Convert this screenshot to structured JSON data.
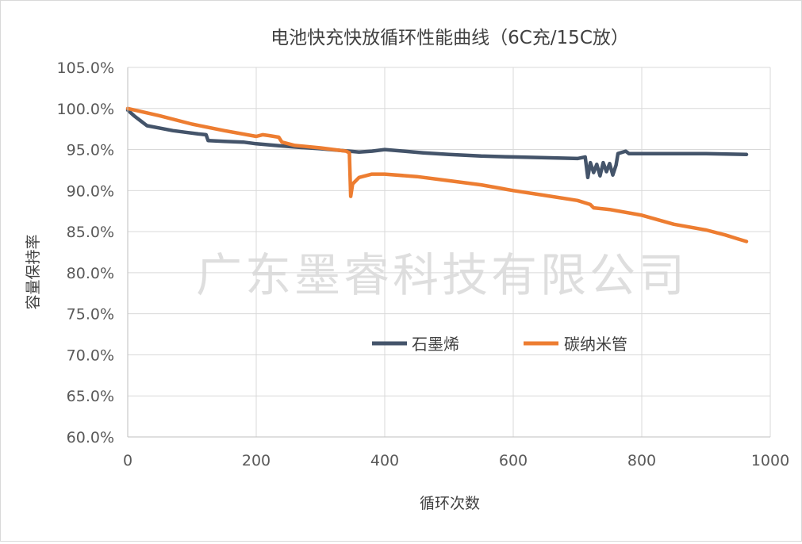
{
  "chart_data": {
    "type": "line",
    "title": "电池快充快放循环性能曲线（6C充/15C放）",
    "xlabel": "循环次数",
    "ylabel": "容量保持率",
    "xlim": [
      0,
      1000
    ],
    "ylim": [
      60,
      105
    ],
    "xticks": [
      0,
      200,
      400,
      600,
      800,
      1000
    ],
    "xtick_labels": [
      "0",
      "200",
      "400",
      "600",
      "800",
      "1000"
    ],
    "yticks": [
      60,
      65,
      70,
      75,
      80,
      85,
      90,
      95,
      100,
      105
    ],
    "ytick_labels": [
      "60.0%",
      "65.0%",
      "70.0%",
      "75.0%",
      "80.0%",
      "85.0%",
      "90.0%",
      "95.0%",
      "100.0%",
      "105.0%"
    ],
    "grid": true,
    "legend_position": "center-right",
    "watermark": "广东墨睿科技有限公司",
    "series": [
      {
        "name": "石墨烯",
        "color": "#44546a",
        "points": [
          [
            0,
            99.8
          ],
          [
            10,
            99.1
          ],
          [
            20,
            98.5
          ],
          [
            30,
            97.9
          ],
          [
            50,
            97.6
          ],
          [
            70,
            97.3
          ],
          [
            90,
            97.1
          ],
          [
            110,
            96.9
          ],
          [
            122,
            96.8
          ],
          [
            125,
            96.1
          ],
          [
            150,
            96.0
          ],
          [
            180,
            95.9
          ],
          [
            200,
            95.7
          ],
          [
            230,
            95.5
          ],
          [
            260,
            95.3
          ],
          [
            300,
            95.1
          ],
          [
            330,
            94.9
          ],
          [
            345,
            94.8
          ],
          [
            360,
            94.7
          ],
          [
            380,
            94.8
          ],
          [
            400,
            95.0
          ],
          [
            430,
            94.8
          ],
          [
            460,
            94.6
          ],
          [
            500,
            94.4
          ],
          [
            550,
            94.2
          ],
          [
            600,
            94.1
          ],
          [
            650,
            94.0
          ],
          [
            700,
            93.9
          ],
          [
            712,
            94.1
          ],
          [
            716,
            91.6
          ],
          [
            720,
            93.4
          ],
          [
            725,
            92.2
          ],
          [
            730,
            93.2
          ],
          [
            735,
            91.8
          ],
          [
            740,
            93.4
          ],
          [
            745,
            92.3
          ],
          [
            750,
            93.3
          ],
          [
            755,
            91.9
          ],
          [
            760,
            93.1
          ],
          [
            763,
            94.5
          ],
          [
            775,
            94.8
          ],
          [
            780,
            94.5
          ],
          [
            800,
            94.5
          ],
          [
            850,
            94.5
          ],
          [
            900,
            94.5
          ],
          [
            963,
            94.4
          ]
        ]
      },
      {
        "name": "碳纳米管",
        "color": "#ed7d31",
        "points": [
          [
            0,
            100.0
          ],
          [
            50,
            99.1
          ],
          [
            100,
            98.1
          ],
          [
            150,
            97.3
          ],
          [
            200,
            96.6
          ],
          [
            210,
            96.8
          ],
          [
            220,
            96.7
          ],
          [
            235,
            96.5
          ],
          [
            240,
            95.9
          ],
          [
            260,
            95.5
          ],
          [
            300,
            95.2
          ],
          [
            340,
            94.8
          ],
          [
            345,
            94.6
          ],
          [
            347,
            89.3
          ],
          [
            350,
            90.8
          ],
          [
            360,
            91.6
          ],
          [
            380,
            92.0
          ],
          [
            400,
            92.0
          ],
          [
            450,
            91.7
          ],
          [
            500,
            91.2
          ],
          [
            550,
            90.7
          ],
          [
            600,
            90.0
          ],
          [
            650,
            89.4
          ],
          [
            700,
            88.8
          ],
          [
            720,
            88.3
          ],
          [
            725,
            87.9
          ],
          [
            750,
            87.7
          ],
          [
            800,
            87.0
          ],
          [
            850,
            85.9
          ],
          [
            900,
            85.2
          ],
          [
            930,
            84.6
          ],
          [
            950,
            84.1
          ],
          [
            963,
            83.8
          ]
        ]
      }
    ]
  }
}
